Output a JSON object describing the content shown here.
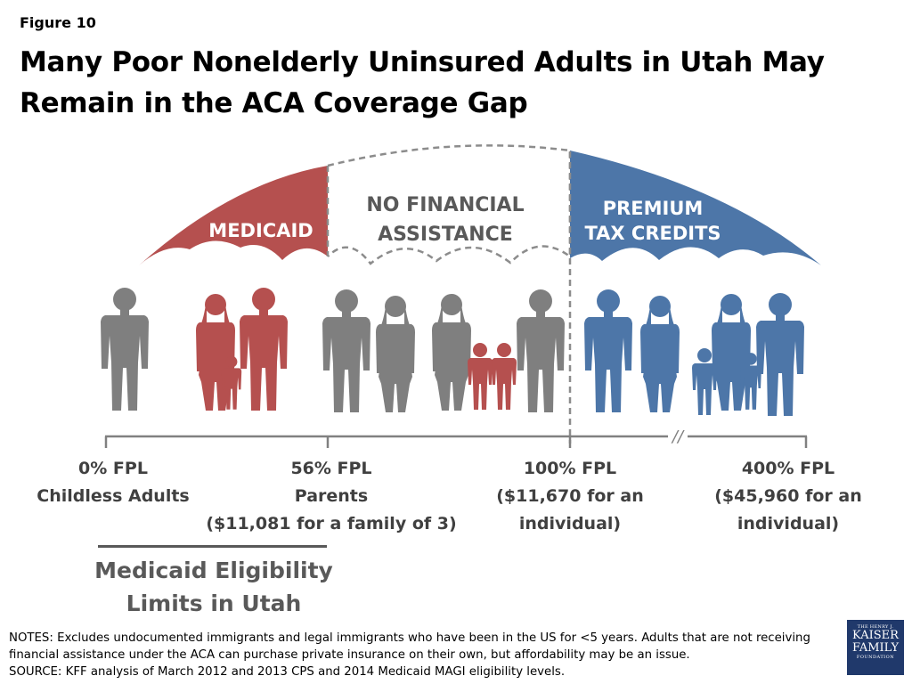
{
  "figure_label": "Figure 10",
  "title_line1": "Many Poor Nonelderly Uninsured Adults in Utah May",
  "title_line2": "Remain in the ACA Coverage Gap",
  "umbrellas": {
    "medicaid": "MEDICAID",
    "no_assist_line1": "NO FINANCIAL",
    "no_assist_line2": "ASSISTANCE",
    "premium_line1": "PREMIUM",
    "premium_line2": "TAX CREDITS"
  },
  "axis": {
    "p0_line1": "0% FPL",
    "p0_line2": "Childless Adults",
    "p56_line1": "56% FPL",
    "p56_line2": "Parents",
    "p56_line3": "($11,081 for a family of 3)",
    "p100_line1": "100% FPL",
    "p100_line2": "($11,670 for an",
    "p100_line3": "individual)",
    "p400_line1": "400% FPL",
    "p400_line2": "($45,960 for an",
    "p400_line3": "individual)",
    "break_mark": "//"
  },
  "eligibility_line1": "Medicaid Eligibility",
  "eligibility_line2": "Limits in Utah",
  "notes_line1": "NOTES: Excludes undocumented immigrants and legal immigrants who have been in the US for <5 years. Adults that are not receiving",
  "notes_line2": "financial assistance under the ACA can purchase private insurance on their own, but affordability may be an issue.",
  "source_line": "SOURCE: KFF analysis of March 2012 and 2013 CPS and 2014 Medicaid MAGI eligibility levels.",
  "logo": {
    "line1": "THE HENRY J.",
    "line2": "KAISER",
    "line3": "FAMILY",
    "line4": "FOUNDATION"
  },
  "colors": {
    "medicaid": "#b5504f",
    "premium": "#4d76a8",
    "uninsured": "#7f7f7f",
    "text_gray": "#404040"
  }
}
